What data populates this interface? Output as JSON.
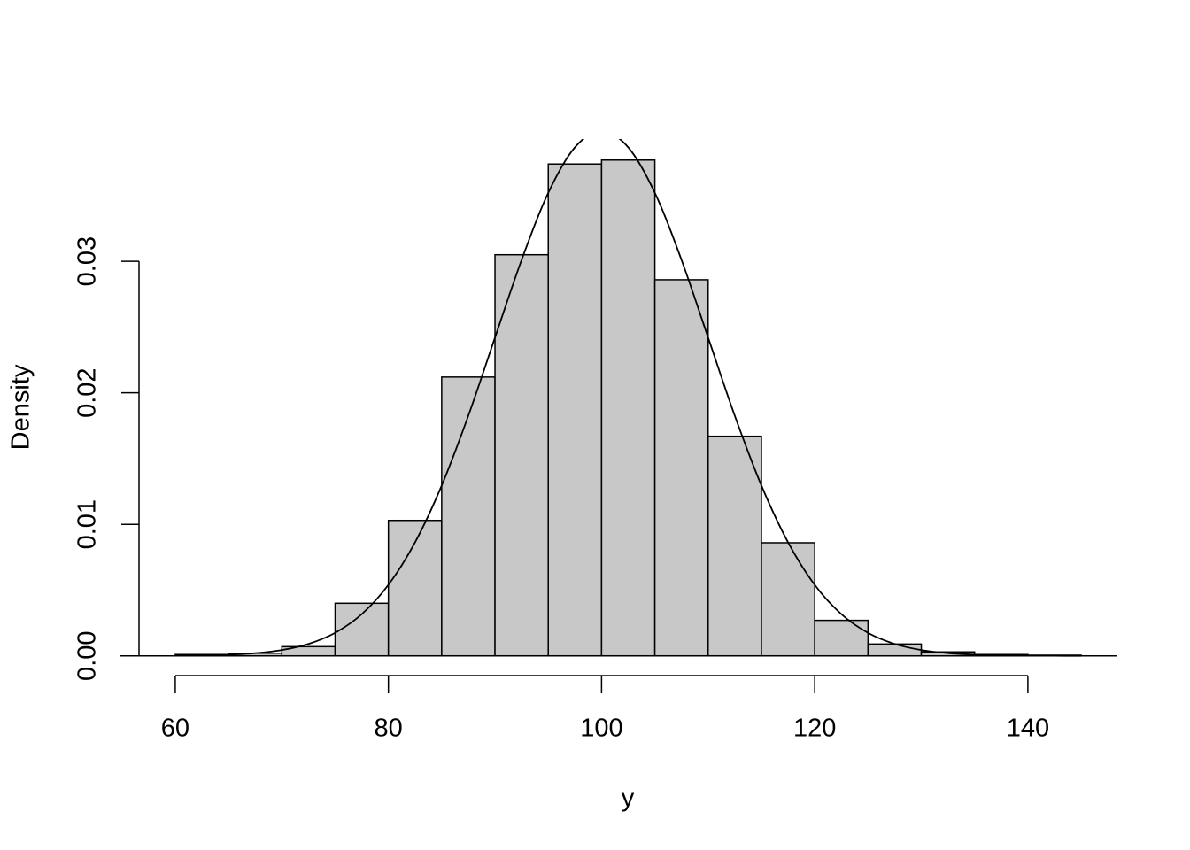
{
  "chart_data": {
    "type": "histogram",
    "x_label": "y",
    "y_label": "Density",
    "bins": [
      60,
      65,
      70,
      75,
      80,
      85,
      90,
      95,
      100,
      105,
      110,
      115,
      120,
      125,
      130,
      135,
      140,
      145
    ],
    "values": [
      0.0001,
      0.0002,
      0.0007,
      0.004,
      0.0103,
      0.0212,
      0.0305,
      0.0374,
      0.0377,
      0.0286,
      0.0167,
      0.0086,
      0.0027,
      0.0009,
      0.0003,
      0.0001,
      5e-05
    ],
    "color": "#c8c8c8",
    "curve": {
      "color": "#000000",
      "x": [
        60,
        62.5,
        65,
        67.5,
        70,
        72.5,
        75,
        77.5,
        80,
        82.5,
        85,
        87.5,
        90,
        92.5,
        95,
        97.5,
        100,
        102.5,
        105,
        107.5,
        110,
        112.5,
        115,
        117.5,
        120,
        122.5,
        125,
        127.5,
        130,
        132.5,
        135,
        137.5,
        140,
        142.5,
        145
      ],
      "values": [
        1.34e-05,
        3.53e-05,
        8.73e-05,
        0.000203,
        0.000443,
        0.000909,
        0.00175,
        0.00317,
        0.0054,
        0.00863,
        0.01295,
        0.01826,
        0.0242,
        0.03011,
        0.03521,
        0.03867,
        0.03989,
        0.03867,
        0.03521,
        0.03011,
        0.0242,
        0.01826,
        0.01295,
        0.00863,
        0.0054,
        0.00317,
        0.00175,
        0.000909,
        0.000443,
        0.000203,
        8.73e-05,
        3.53e-05,
        1.34e-05,
        4.8e-06,
        1.6e-06
      ]
    },
    "xlim": [
      56.6,
      148.4
    ],
    "ylim": [
      -0.0015,
      0.0393
    ],
    "xticks": [
      60,
      80,
      100,
      120,
      140
    ],
    "yticks": [
      {
        "value": 0,
        "label": "0.00"
      },
      0.01,
      0.02,
      0.03
    ]
  }
}
